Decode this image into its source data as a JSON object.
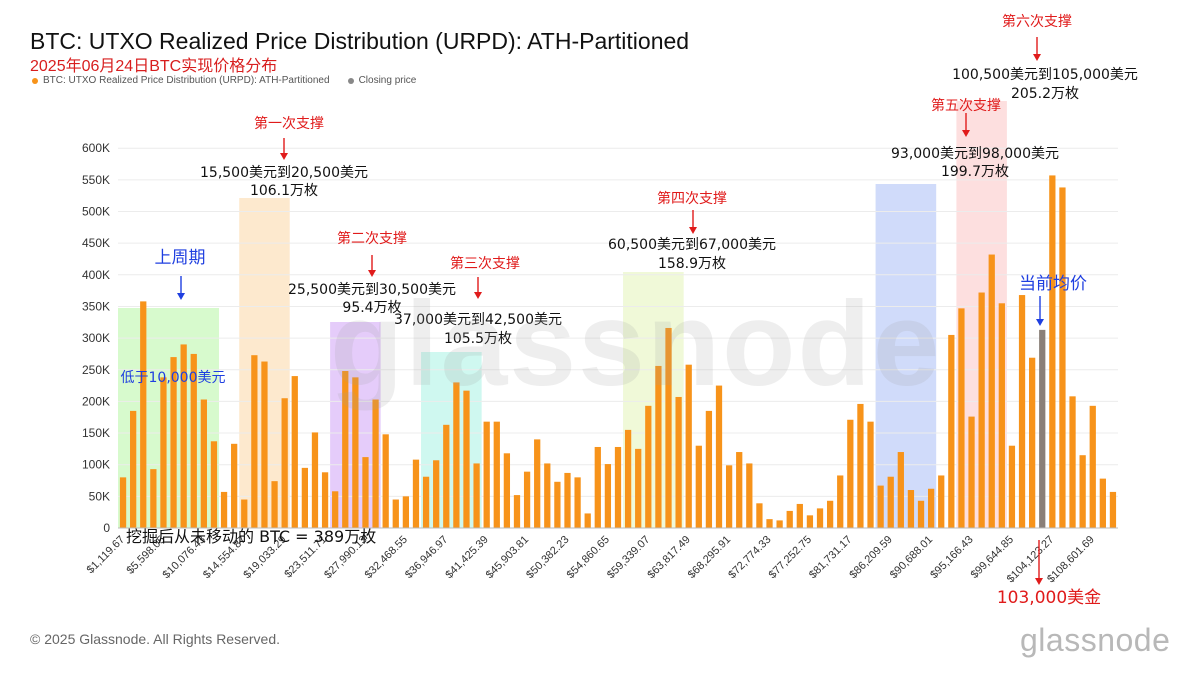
{
  "title": "BTC: UTXO Realized Price Distribution (URPD): ATH-Partitioned",
  "subtitle": "2025年06月24日BTC实现价格分布",
  "legend": [
    {
      "label": "BTC: UTXO Realized Price Distribution (URPD): ATH-Partitioned",
      "color": "#f7931a"
    },
    {
      "label": "Closing price",
      "color": "#888888"
    }
  ],
  "footer": {
    "copyright": "© 2025 Glassnode. All Rights Reserved.",
    "logo": "glassnode",
    "watermark": "glassnode"
  },
  "colors": {
    "bar": "#f7931a",
    "closing_bar": "#8a7f78",
    "red": "#e01b1b",
    "blue": "#1f3fe0",
    "black": "#111111"
  },
  "chart_data": {
    "type": "bar",
    "title": "BTC: UTXO Realized Price Distribution (URPD): ATH-Partitioned",
    "ylim": [
      0,
      650000
    ],
    "y_ticks": [
      0,
      50000,
      100000,
      150000,
      200000,
      250000,
      300000,
      350000,
      400000,
      450000,
      500000,
      550000,
      600000
    ],
    "y_tick_labels": [
      "0",
      "50K",
      "100K",
      "150K",
      "200K",
      "250K",
      "300K",
      "350K",
      "400K",
      "450K",
      "500K",
      "550K",
      "600K"
    ],
    "x_tick_labels": [
      "$1,119.67",
      "$5,598.05",
      "$10,076.43",
      "$14,554.87",
      "$19,033.29",
      "$23,511.71",
      "$27,990.13",
      "$32,468.55",
      "$36,946.97",
      "$41,425.39",
      "$45,903.81",
      "$50,382.23",
      "$54,860.65",
      "$59,339.07",
      "$63,817.49",
      "$68,295.91",
      "$72,774.33",
      "$77,252.75",
      "$81,731.17",
      "$86,209.59",
      "$90,688.01",
      "$95,166.43",
      "$99,644.85",
      "$104,123.27",
      "$108,601.69"
    ],
    "bucket_width": 1119.5,
    "closing_price_bucket_index": 91,
    "values": [
      80000,
      185000,
      358000,
      93000,
      238000,
      270000,
      290000,
      275000,
      203000,
      137000,
      57000,
      133000,
      45000,
      273000,
      263000,
      74000,
      205000,
      240000,
      95000,
      151000,
      88000,
      58000,
      248000,
      238000,
      112000,
      203000,
      148000,
      45000,
      50000,
      108000,
      81000,
      107000,
      163000,
      230000,
      217000,
      102000,
      168000,
      168000,
      118000,
      52000,
      89000,
      140000,
      102000,
      73000,
      87000,
      80000,
      23000,
      128000,
      101000,
      128000,
      155000,
      125000,
      193000,
      256000,
      316000,
      207000,
      258000,
      130000,
      185000,
      225000,
      99000,
      120000,
      102000,
      39000,
      14000,
      12000,
      27000,
      38000,
      20000,
      31000,
      43000,
      83000,
      171000,
      196000,
      168000,
      67000,
      81000,
      120000,
      60000,
      43000,
      62000,
      83000,
      305000,
      347000,
      176000,
      372000,
      432000,
      355000,
      130000,
      368000,
      269000,
      313000,
      557000,
      538000,
      208000,
      115000,
      193000,
      78000,
      57000
    ],
    "annotations": [
      {
        "text": "低于10,000美元",
        "color": "blue"
      },
      {
        "text": "上周期",
        "color": "blue"
      },
      {
        "text": "第一次支撑",
        "color": "red"
      },
      {
        "text": "15,500美元到20,500美元",
        "color": "black"
      },
      {
        "text": "106.1万枚",
        "color": "black"
      },
      {
        "text": "第二次支撑",
        "color": "red"
      },
      {
        "text": "25,500美元到30,500美元",
        "color": "black"
      },
      {
        "text": "95.4万枚",
        "color": "black"
      },
      {
        "text": "第三次支撑",
        "color": "red"
      },
      {
        "text": "37,000美元到42,500美元",
        "color": "black"
      },
      {
        "text": "105.5万枚",
        "color": "black"
      },
      {
        "text": "第四次支撑",
        "color": "red"
      },
      {
        "text": "60,500美元到67,000美元",
        "color": "black"
      },
      {
        "text": "158.9万枚",
        "color": "black"
      },
      {
        "text": "第五次支撑",
        "color": "red"
      },
      {
        "text": "93,000美元到98,000美元",
        "color": "black"
      },
      {
        "text": "199.7万枚",
        "color": "black"
      },
      {
        "text": "第六次支撑",
        "color": "red"
      },
      {
        "text": "100,500美元到105,000美元",
        "color": "black"
      },
      {
        "text": "205.2万枚",
        "color": "black"
      },
      {
        "text": "当前均价",
        "color": "blue"
      },
      {
        "text": "103,000美金",
        "color": "red"
      },
      {
        "text": "挖掘后从未移动的 BTC = 389万枚",
        "color": "black"
      }
    ],
    "regions": [
      {
        "label": "上周期",
        "color": "#b6f5a4"
      },
      {
        "label": "第一次支撑",
        "color": "#fbd7a6"
      },
      {
        "label": "第二次支撑",
        "color": "#cfa3f6"
      },
      {
        "label": "第三次支撑",
        "color": "#a8f3e3"
      },
      {
        "label": "第四次支撑",
        "color": "#e4f4b8"
      },
      {
        "label": "第五次支撑",
        "color": "#a9bdf5"
      },
      {
        "label": "第六次支撑",
        "color": "#fbc4c4"
      }
    ]
  }
}
